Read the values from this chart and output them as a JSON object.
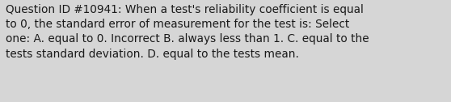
{
  "line1": "Question ID #10941: When a test's reliability coefficient is equal",
  "line2": "to 0, the standard error of measurement for the test is: Select",
  "line3": "one: A. equal to 0. Incorrect B. always less than 1. C. equal to the",
  "line4": "tests standard deviation. D. equal to the tests mean.",
  "background_color": "#d6d6d6",
  "text_color": "#1a1a1a",
  "font_size": 9.8,
  "fig_width": 5.58,
  "fig_height": 1.26,
  "dpi": 100
}
